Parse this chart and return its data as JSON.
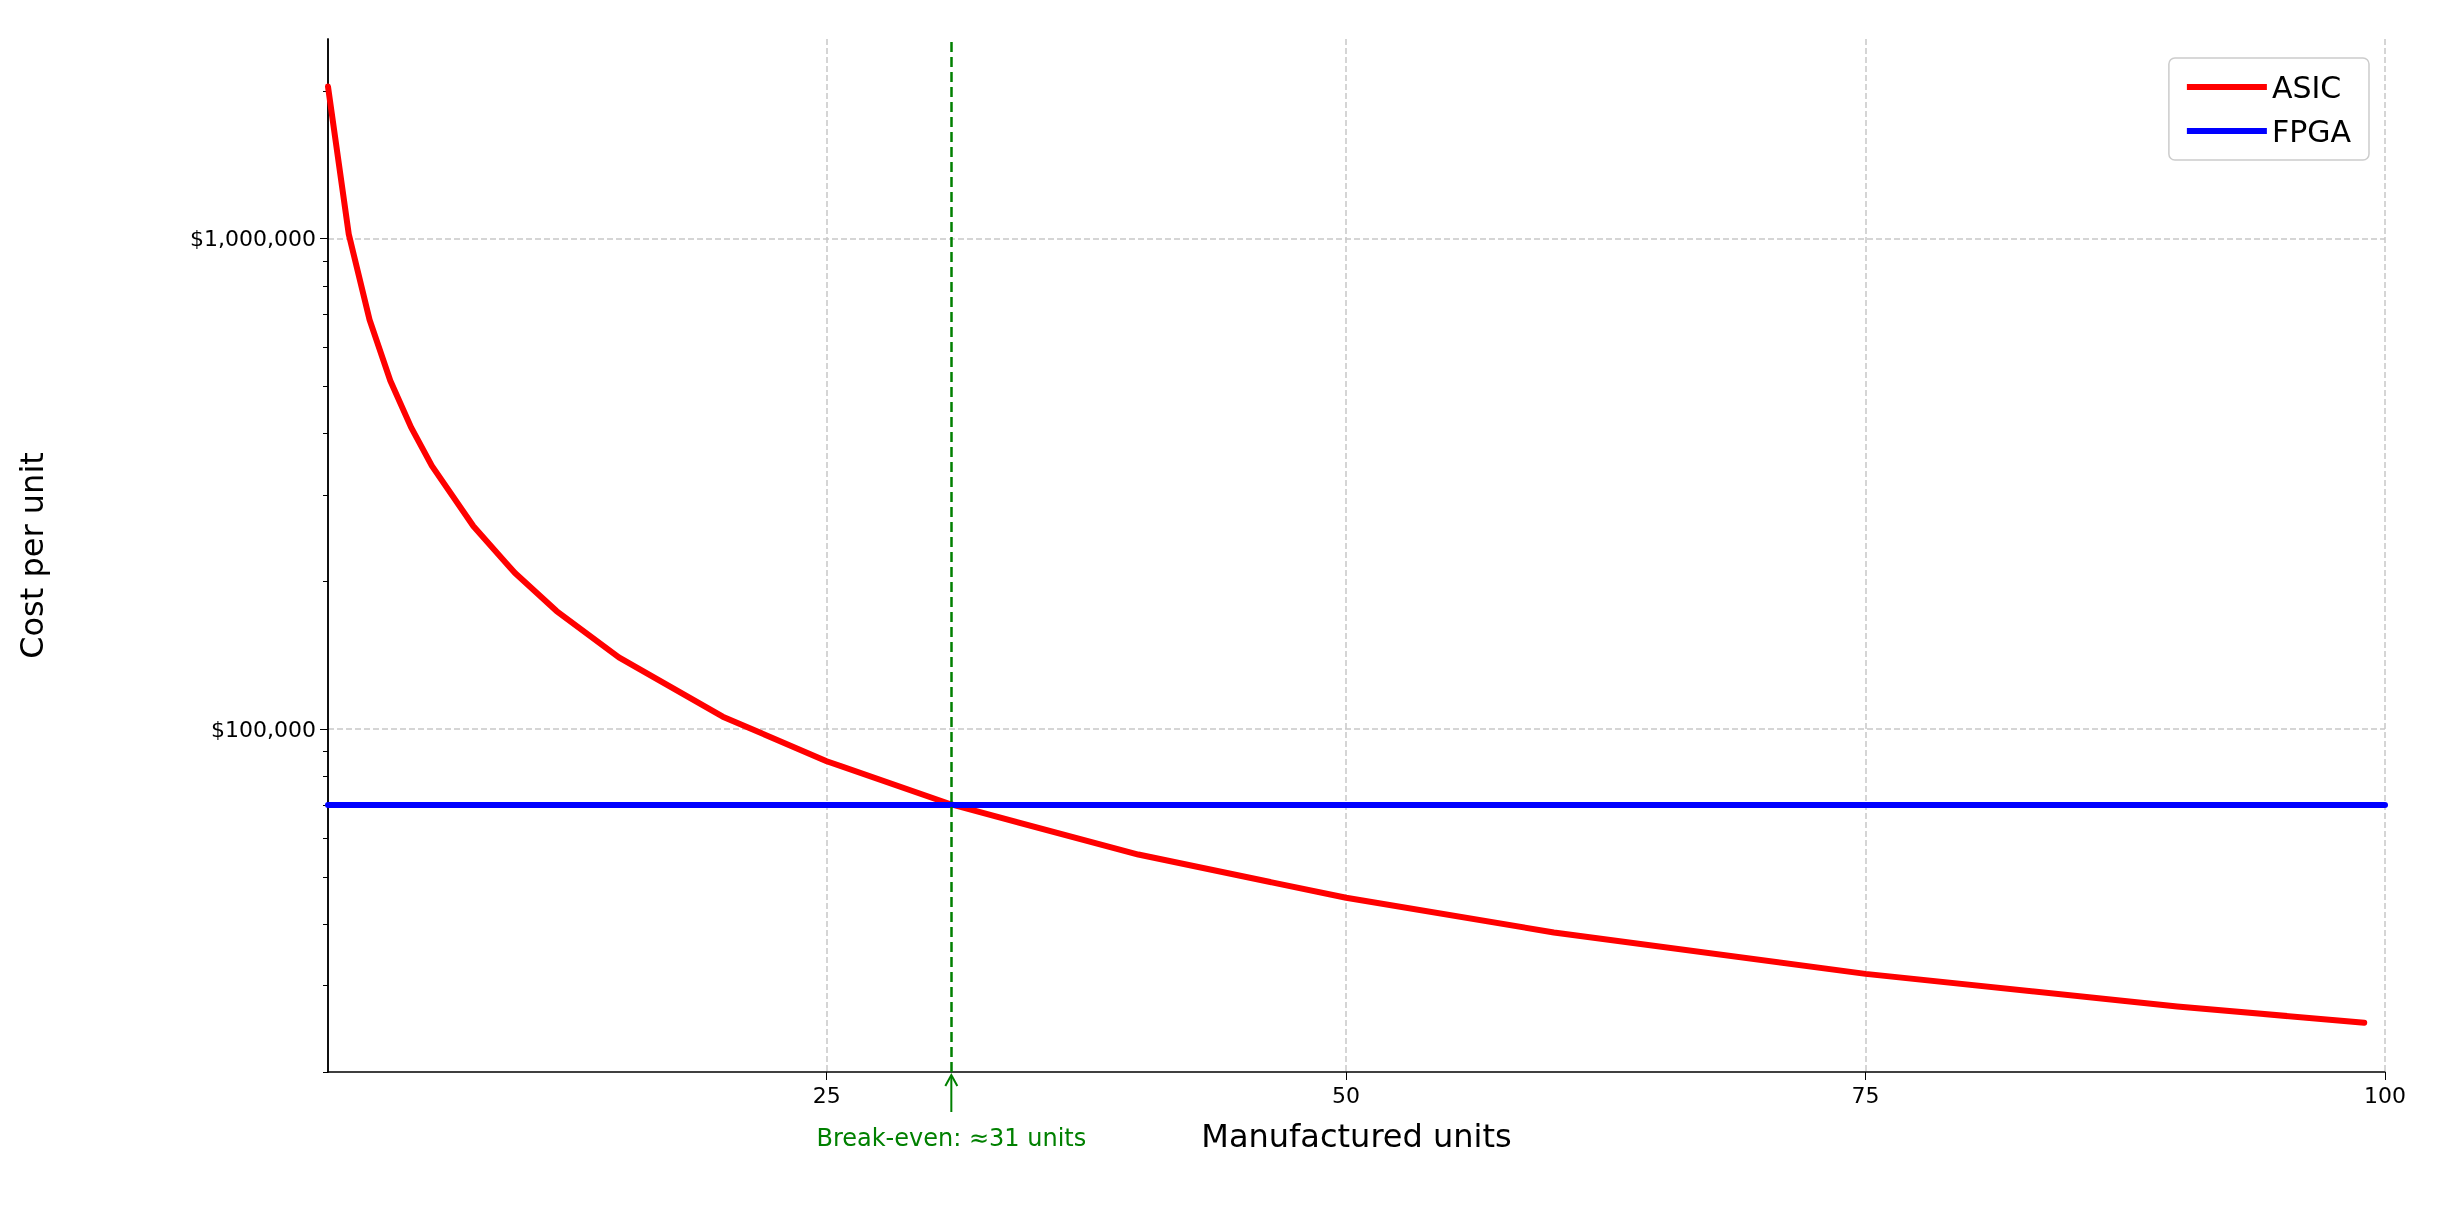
{
  "chart_data": {
    "type": "line",
    "xlabel": "Manufactured units",
    "ylabel": "Cost per unit",
    "log": "y",
    "grid": true,
    "legend": "top right",
    "marker": "none",
    "line_style": "solid",
    "xlim": [
      1,
      100
    ],
    "xticks": [
      25,
      50,
      75,
      100
    ],
    "ylim": [
      20000,
      2550000
    ],
    "yticks": [
      {
        "value": 20000,
        "label": null
      },
      {
        "value": 30000,
        "label": null
      },
      {
        "value": 40000,
        "label": null
      },
      {
        "value": 50000,
        "label": null
      },
      {
        "value": 60000,
        "label": null
      },
      {
        "value": 70000,
        "label": null
      },
      {
        "value": 80000,
        "label": null
      },
      {
        "value": 90000,
        "label": null
      },
      {
        "value": 100000,
        "label": "$100,000"
      },
      {
        "value": 200000,
        "label": null
      },
      {
        "value": 300000,
        "label": null
      },
      {
        "value": 400000,
        "label": null
      },
      {
        "value": 500000,
        "label": null
      },
      {
        "value": 600000,
        "label": null
      },
      {
        "value": 700000,
        "label": null
      },
      {
        "value": 800000,
        "label": null
      },
      {
        "value": 900000,
        "label": null
      },
      {
        "value": 1000000,
        "label": "$1,000,000"
      },
      {
        "value": 2000000,
        "label": null
      }
    ],
    "series": [
      {
        "name": "ASIC",
        "color": "#ff0000",
        "x": [
          1,
          2,
          3,
          4,
          5,
          6,
          8,
          10,
          12,
          15,
          20,
          25,
          31,
          40,
          50,
          60,
          75,
          90,
          99
        ],
        "values": [
          2040000,
          1020000,
          683000,
          513000,
          412000,
          344000,
          259000,
          208000,
          174000,
          140000,
          106000,
          86000,
          70200,
          55500,
          45300,
          38500,
          31700,
          27200,
          25200
        ]
      },
      {
        "name": "FPGA",
        "color": "#0000ff",
        "x": [
          1,
          100
        ],
        "values": [
          70000,
          70000
        ]
      }
    ],
    "ref_lines": [
      {
        "axis": "x",
        "value": 31,
        "label": "Break-even: ≈31 units",
        "color": "#008000",
        "line_style": "dashed"
      }
    ]
  }
}
